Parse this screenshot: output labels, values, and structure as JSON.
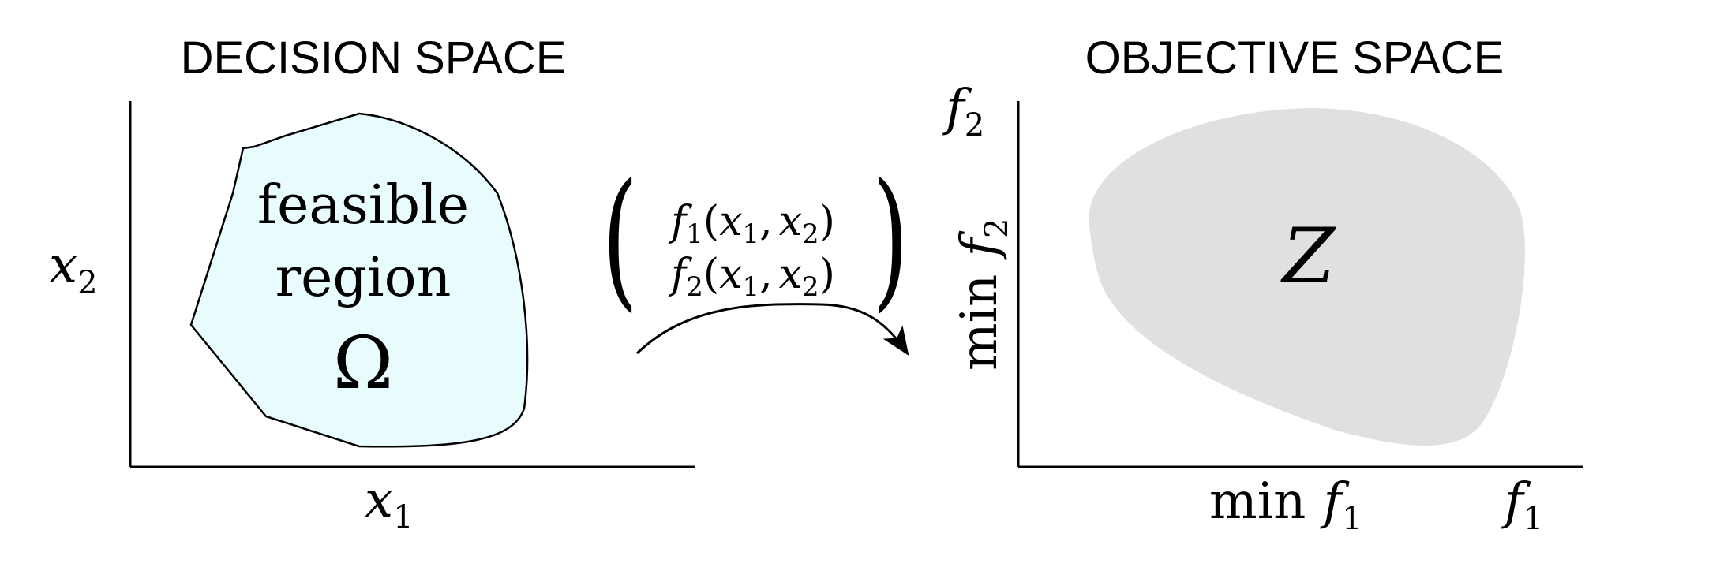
{
  "decision_space": {
    "title": "DECISION SPACE",
    "x_axis_label": {
      "var": "x",
      "sub": "1"
    },
    "y_axis_label": {
      "var": "x",
      "sub": "2"
    },
    "region_label": {
      "line1": "feasible",
      "line2": "region",
      "symbol": "Ω"
    },
    "region_color": "#e8fbfd",
    "region_stroke": "#000000"
  },
  "mapping": {
    "row1": {
      "fn": "f",
      "fn_sub": "1",
      "open": "(",
      "a": "x",
      "a_sub": "1",
      "sep": ",",
      "b": "x",
      "b_sub": "2",
      "close": ")"
    },
    "row2": {
      "fn": "f",
      "fn_sub": "2",
      "open": "(",
      "a": "x",
      "a_sub": "1",
      "sep": ",",
      "b": "x",
      "b_sub": "2",
      "close": ")"
    },
    "left_bracket": "(",
    "right_bracket": ")"
  },
  "objective_space": {
    "title": "OBJECTIVE SPACE",
    "x_axis_end": {
      "var": "f",
      "sub": "1"
    },
    "y_axis_end": {
      "var": "f",
      "sub": "2"
    },
    "x_min_label": {
      "prefix": "min",
      "var": "f",
      "sub": "1"
    },
    "y_min_label": {
      "prefix": "min",
      "var": "f",
      "sub": "2"
    },
    "region_label": "Z",
    "region_color": "#e0e0e0"
  }
}
